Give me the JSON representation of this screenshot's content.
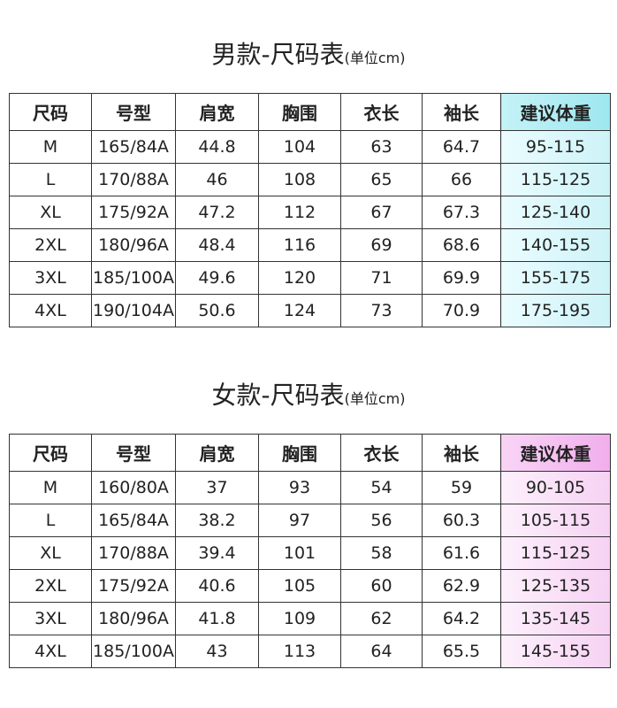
{
  "sections": [
    {
      "title": "男款-尺码表",
      "unit": "(单位cm)",
      "table": {
        "header": [
          "尺码",
          "号型",
          "肩宽",
          "胸围",
          "衣长",
          "袖长",
          "建议体重"
        ],
        "rows": [
          [
            "M",
            "165/84A",
            "44.8",
            "104",
            "63",
            "64.7",
            "95-115"
          ],
          [
            "L",
            "170/88A",
            "46",
            "108",
            "65",
            "66",
            "115-125"
          ],
          [
            "XL",
            "175/92A",
            "47.2",
            "112",
            "67",
            "67.3",
            "125-140"
          ],
          [
            "2XL",
            "180/96A",
            "48.4",
            "116",
            "69",
            "68.6",
            "140-155"
          ],
          [
            "3XL",
            "185/100A",
            "49.6",
            "120",
            "71",
            "69.9",
            "155-175"
          ],
          [
            "4XL",
            "190/104A",
            "50.6",
            "124",
            "73",
            "70.9",
            "175-195"
          ]
        ]
      }
    },
    {
      "title": "女款-尺码表",
      "unit": "(单位cm)",
      "table": {
        "header": [
          "尺码",
          "号型",
          "肩宽",
          "胸围",
          "衣长",
          "袖长",
          "建议体重"
        ],
        "rows": [
          [
            "M",
            "160/80A",
            "37",
            "93",
            "54",
            "59",
            "90-105"
          ],
          [
            "L",
            "165/84A",
            "38.2",
            "97",
            "56",
            "60.3",
            "105-115"
          ],
          [
            "XL",
            "170/88A",
            "39.4",
            "101",
            "58",
            "61.6",
            "115-125"
          ],
          [
            "2XL",
            "175/92A",
            "40.6",
            "105",
            "60",
            "62.9",
            "125-135"
          ],
          [
            "3XL",
            "180/96A",
            "41.8",
            "109",
            "62",
            "64.2",
            "135-145"
          ],
          [
            "4XL",
            "185/100A",
            "43",
            "113",
            "64",
            "65.5",
            "145-155"
          ]
        ]
      }
    }
  ]
}
